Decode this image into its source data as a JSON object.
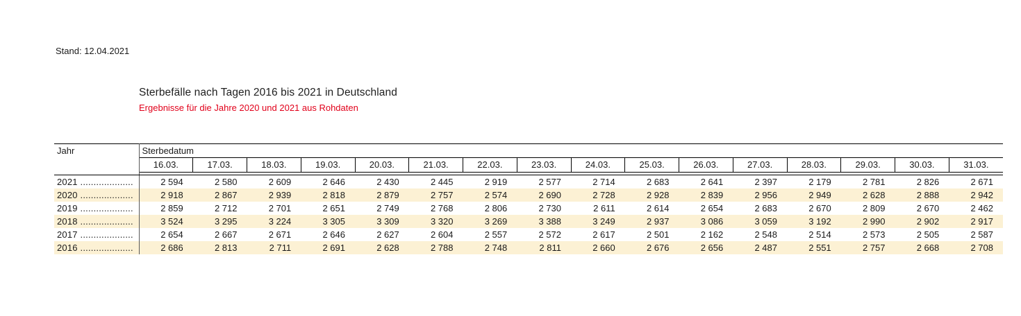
{
  "meta": {
    "stand": "Stand: 12.04.2021"
  },
  "header": {
    "title": "Sterbefälle nach Tagen 2016 bis 2021 in Deutschland",
    "subtitle": "Ergebnisse für die Jahre 2020 und 2021 aus Rohdaten"
  },
  "colors": {
    "highlight_row": "#FCF1D4",
    "subtitle_red": "#E1001A",
    "table_line": "#000000",
    "jahr_divider": "#595959"
  },
  "table": {
    "corner_header": "Jahr",
    "group_header": "Sterbedatum",
    "columns": [
      "16.03.",
      "17.03.",
      "18.03.",
      "19.03.",
      "20.03.",
      "21.03.",
      "22.03.",
      "23.03.",
      "24.03.",
      "25.03.",
      "26.03.",
      "27.03.",
      "28.03.",
      "29.03.",
      "30.03.",
      "31.03."
    ],
    "rows": [
      {
        "label": "2021 ....................",
        "highlight": false,
        "values": [
          "2 594",
          "2 580",
          "2 609",
          "2 646",
          "2 430",
          "2 445",
          "2 919",
          "2 577",
          "2 714",
          "2 683",
          "2 641",
          "2 397",
          "2 179",
          "2 781",
          "2 826",
          "2 671"
        ]
      },
      {
        "label": "2020 ....................",
        "highlight": true,
        "values": [
          "2 918",
          "2 867",
          "2 939",
          "2 818",
          "2 879",
          "2 757",
          "2 574",
          "2 690",
          "2 728",
          "2 928",
          "2 839",
          "2 956",
          "2 949",
          "2 628",
          "2 888",
          "2 942"
        ]
      },
      {
        "label": "2019 ....................",
        "highlight": false,
        "values": [
          "2 859",
          "2 712",
          "2 701",
          "2 651",
          "2 749",
          "2 768",
          "2 806",
          "2 730",
          "2 611",
          "2 614",
          "2 654",
          "2 683",
          "2 670",
          "2 809",
          "2 670",
          "2 462"
        ]
      },
      {
        "label": "2018 ....................",
        "highlight": true,
        "values": [
          "3 524",
          "3 295",
          "3 224",
          "3 305",
          "3 309",
          "3 320",
          "3 269",
          "3 388",
          "3 249",
          "2 937",
          "3 086",
          "3 059",
          "3 192",
          "2 990",
          "2 902",
          "2 917"
        ]
      },
      {
        "label": "2017 ....................",
        "highlight": false,
        "values": [
          "2 654",
          "2 667",
          "2 671",
          "2 646",
          "2 627",
          "2 604",
          "2 557",
          "2 572",
          "2 617",
          "2 501",
          "2 162",
          "2 548",
          "2 514",
          "2 573",
          "2 505",
          "2 587"
        ]
      },
      {
        "label": "2016 ....................",
        "highlight": true,
        "values": [
          "2 686",
          "2 813",
          "2 711",
          "2 691",
          "2 628",
          "2 788",
          "2 748",
          "2 811",
          "2 660",
          "2 676",
          "2 656",
          "2 487",
          "2 551",
          "2 757",
          "2 668",
          "2 708"
        ]
      }
    ]
  }
}
